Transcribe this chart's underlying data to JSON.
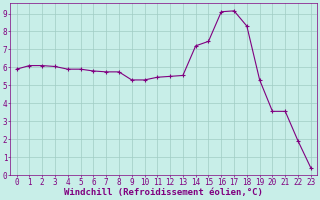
{
  "x": [
    0,
    1,
    2,
    3,
    4,
    5,
    6,
    7,
    8,
    9,
    10,
    11,
    12,
    13,
    14,
    15,
    16,
    17,
    18,
    19,
    20,
    21,
    22,
    23
  ],
  "y": [
    5.9,
    6.1,
    6.1,
    6.05,
    5.9,
    5.9,
    5.8,
    5.75,
    5.75,
    5.3,
    5.3,
    5.45,
    5.5,
    5.55,
    7.2,
    7.45,
    9.1,
    9.15,
    8.3,
    5.3,
    3.55,
    3.55,
    1.9,
    0.4
  ],
  "line_color": "#800080",
  "marker_color": "#800080",
  "bg_color": "#c8eee8",
  "grid_color": "#a0ccc4",
  "xlabel": "Windchill (Refroidissement éolien,°C)",
  "xlabel_color": "#800080",
  "tick_color": "#800080",
  "ylim": [
    0,
    9.6
  ],
  "xlim": [
    -0.5,
    23.5
  ],
  "yticks": [
    0,
    1,
    2,
    3,
    4,
    5,
    6,
    7,
    8,
    9
  ],
  "xticks": [
    0,
    1,
    2,
    3,
    4,
    5,
    6,
    7,
    8,
    9,
    10,
    11,
    12,
    13,
    14,
    15,
    16,
    17,
    18,
    19,
    20,
    21,
    22,
    23
  ],
  "tick_fontsize": 5.5,
  "xlabel_fontsize": 6.5
}
